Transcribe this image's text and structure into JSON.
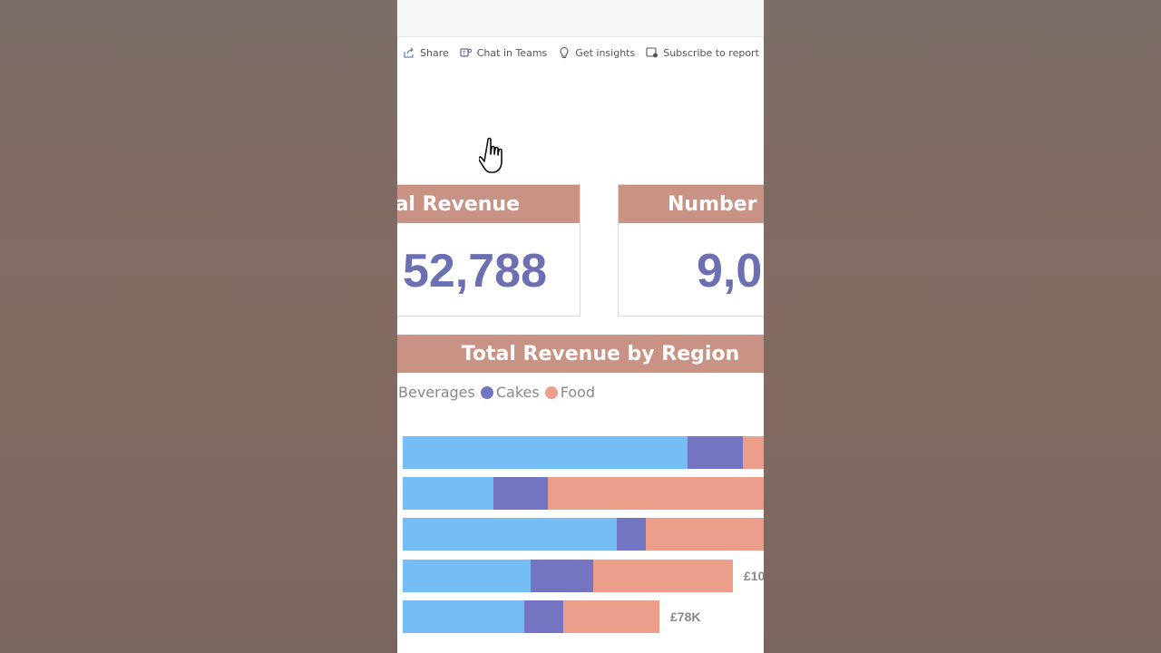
{
  "toolbar": {
    "share": "Share",
    "chat": "Chat in Teams",
    "insights": "Get insights",
    "subscribe": "Subscribe to report"
  },
  "cards": [
    {
      "title": "al Revenue",
      "value": "52,788"
    },
    {
      "title": "Number",
      "value": "9,0"
    }
  ],
  "chart": {
    "title": "Total Revenue by Region",
    "legend": [
      {
        "label": "Beverages",
        "color": "#74bdf7"
      },
      {
        "label": "Cakes",
        "color": "#7375c2"
      },
      {
        "label": "Food",
        "color": "#ec9e8a"
      }
    ]
  },
  "chart_data": {
    "type": "bar",
    "orientation": "horizontal",
    "stacked": true,
    "title": "Total Revenue by Region",
    "series": [
      {
        "name": "Beverages",
        "values": [
          314,
          100,
          236,
          141,
          134
        ]
      },
      {
        "name": "Cakes",
        "values": [
          61,
          60,
          32,
          69,
          43
        ]
      },
      {
        "name": "Food",
        "values": [
          30,
          244,
          140,
          154,
          106
        ]
      }
    ],
    "data_labels": [
      "",
      "",
      "",
      "£10",
      "£78K"
    ]
  },
  "colors": {
    "header": "#c89385",
    "value": "#6c6fb1"
  }
}
